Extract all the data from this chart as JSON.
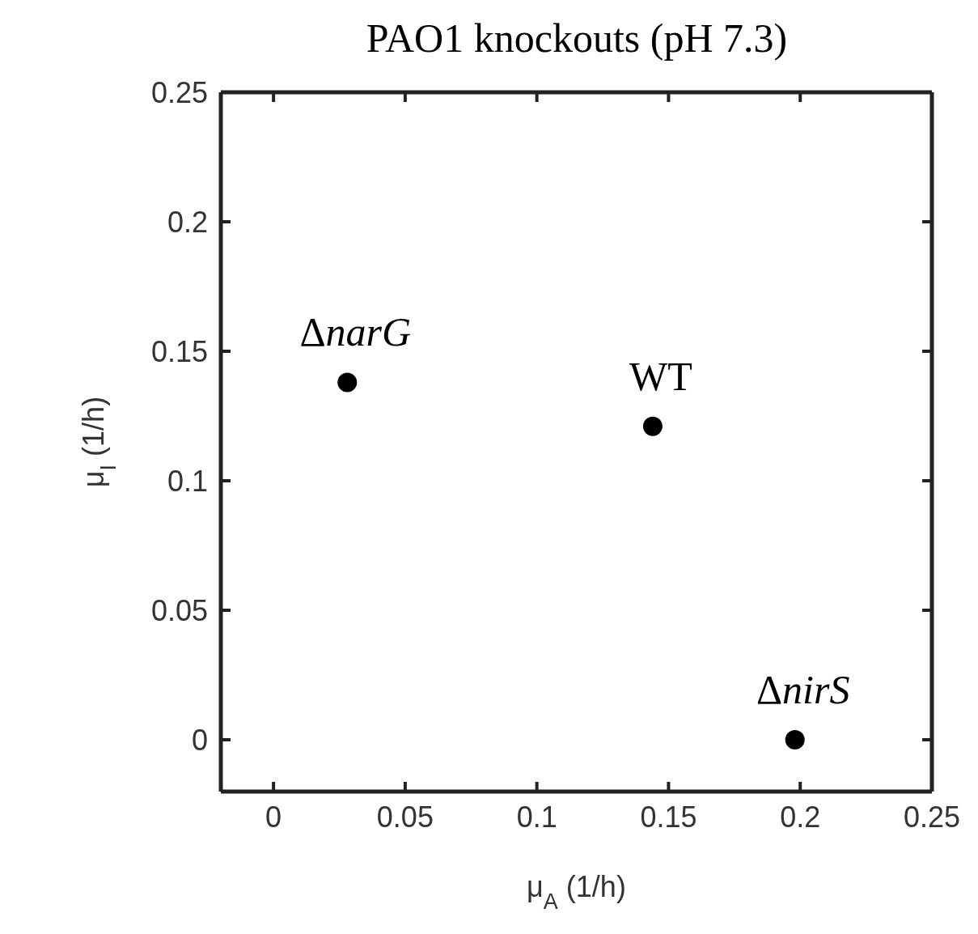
{
  "chart_data": {
    "type": "scatter",
    "title": "PAO1 knockouts (pH 7.3)",
    "xlabel": "μ$_{A}$ (1/h)",
    "ylabel": "μ$_{I}$ (1/h)",
    "x": [
      0.028,
      0.144,
      0.198
    ],
    "series": [
      {
        "color": "#000000",
        "values": [
          0.138,
          0.121,
          0
        ]
      }
    ],
    "xlim": [
      -0.02,
      0.25
    ],
    "xticks": [
      0,
      0.05,
      0.1,
      0.15,
      0.2,
      0.25
    ],
    "ylim": [
      -0.02,
      0.25
    ],
    "yticks": [
      0,
      0.05,
      0.1,
      0.15,
      0.2,
      0.25
    ],
    "legend": false,
    "marker": "circle",
    "annotations": [
      {
        "text": "ΔnarG",
        "x": 0.028,
        "y": 0.138
      },
      {
        "text": "WT",
        "x": 0.144,
        "y": 0.121
      },
      {
        "text": "ΔnirS",
        "x": 0.198,
        "y": 0
      }
    ]
  }
}
